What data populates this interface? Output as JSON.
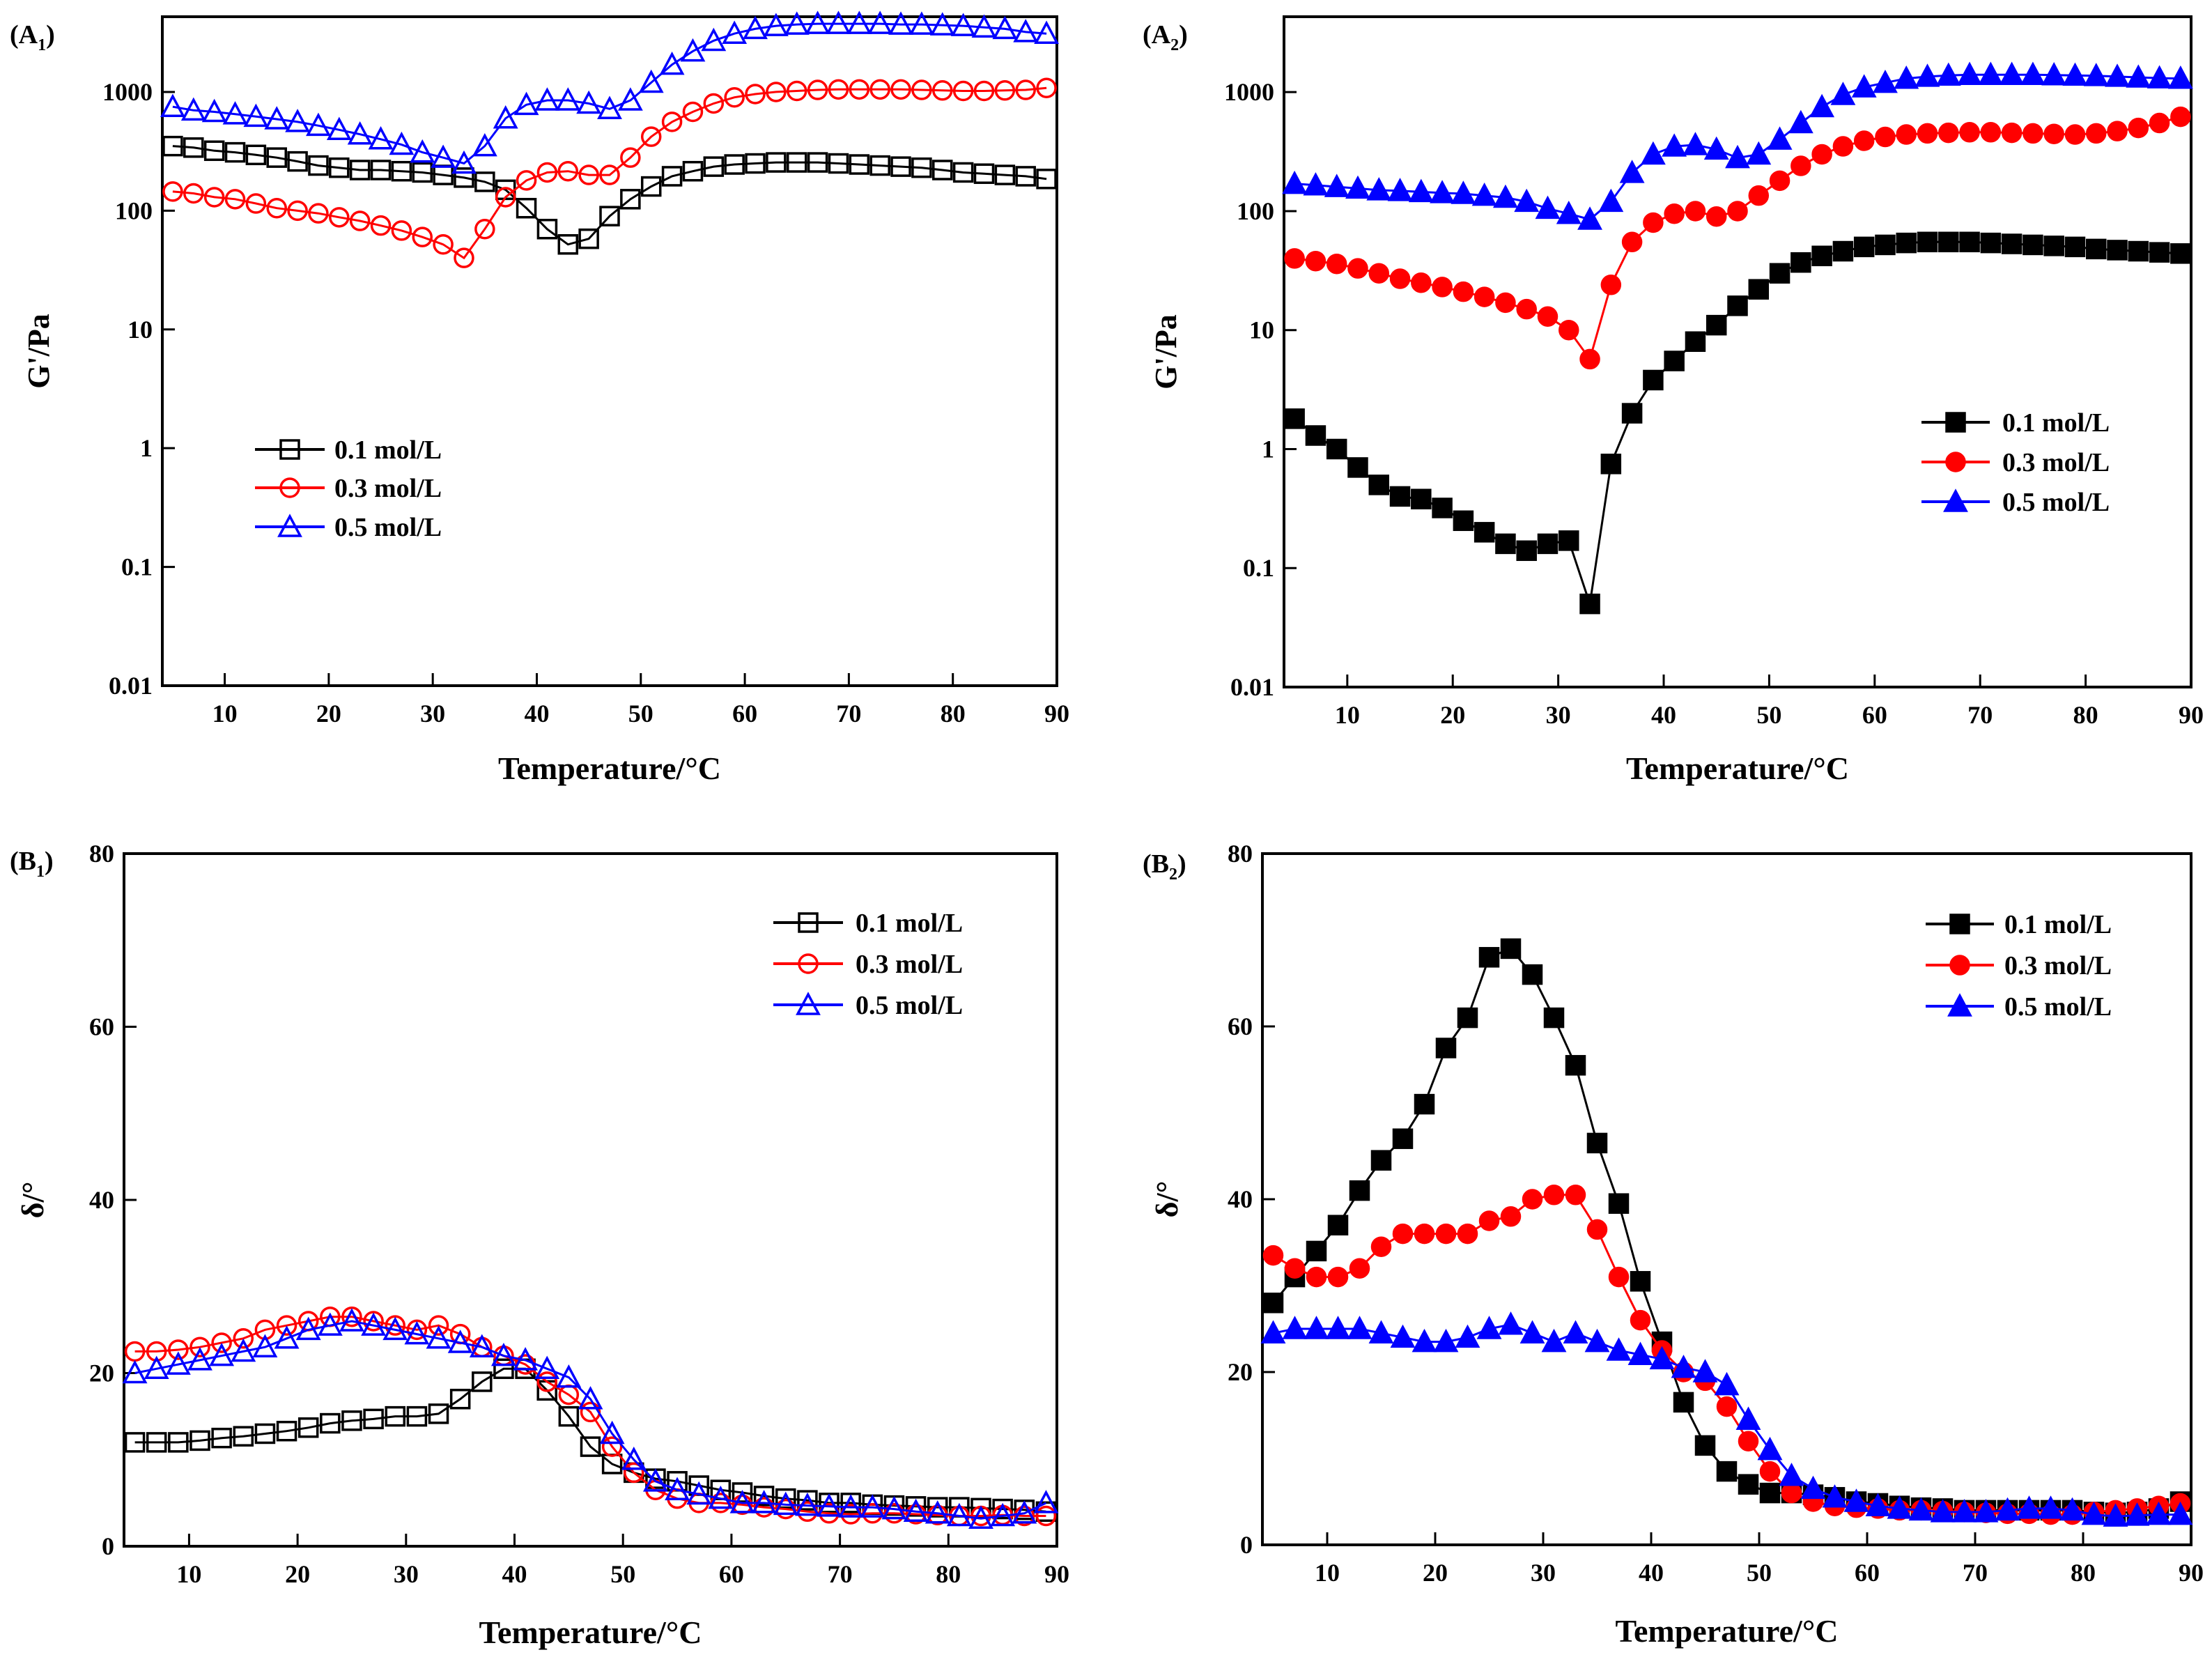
{
  "chart_data": [
    {
      "panel": {
        "main": "A",
        "sub": "1"
      },
      "type": "line",
      "marker_fill": "hollow",
      "legend": "middle-left",
      "xlabel": "Temperature/°C",
      "ylabel": "G'/Pa",
      "yscale": "log",
      "xlim": [
        4,
        90
      ],
      "ylim": [
        0.01,
        4300
      ],
      "xticks": [
        10,
        20,
        30,
        40,
        50,
        60,
        70,
        80,
        90
      ],
      "yticks": [
        0.01,
        0.1,
        1,
        10,
        100,
        1000
      ],
      "ytick_labels": [
        "0.01",
        "0.1",
        "1",
        "10",
        "100",
        "1000"
      ],
      "x": [
        5,
        7,
        9,
        11,
        13,
        15,
        17,
        19,
        21,
        23,
        25,
        27,
        29,
        31,
        33,
        35,
        37,
        39,
        41,
        43,
        45,
        47,
        49,
        51,
        53,
        55,
        57,
        59,
        61,
        63,
        65,
        67,
        69,
        71,
        73,
        75,
        77,
        79,
        81,
        83,
        85,
        87,
        89
      ],
      "series": [
        {
          "name": "0.1 mol/L",
          "color": "#000000",
          "marker": "square",
          "values": [
            350,
            340,
            320,
            310,
            295,
            280,
            260,
            240,
            230,
            220,
            220,
            215,
            210,
            200,
            190,
            175,
            150,
            105,
            70,
            52,
            58,
            90,
            125,
            160,
            195,
            215,
            235,
            245,
            250,
            255,
            255,
            255,
            250,
            245,
            240,
            235,
            230,
            220,
            210,
            205,
            200,
            195,
            185
          ]
        },
        {
          "name": "0.3 mol/L",
          "color": "#ff0000",
          "marker": "circle",
          "values": [
            145,
            140,
            130,
            125,
            115,
            105,
            100,
            95,
            88,
            82,
            75,
            68,
            60,
            52,
            40,
            70,
            130,
            180,
            210,
            215,
            200,
            200,
            280,
            420,
            560,
            680,
            800,
            900,
            960,
            1000,
            1020,
            1040,
            1050,
            1050,
            1050,
            1050,
            1040,
            1030,
            1020,
            1020,
            1030,
            1040,
            1080
          ]
        },
        {
          "name": "0.5 mol/L",
          "color": "#0000ff",
          "marker": "triangle",
          "values": [
            750,
            700,
            680,
            650,
            620,
            590,
            560,
            520,
            480,
            440,
            400,
            360,
            310,
            280,
            250,
            350,
            600,
            780,
            850,
            850,
            800,
            720,
            850,
            1200,
            1700,
            2200,
            2700,
            3100,
            3400,
            3600,
            3700,
            3750,
            3750,
            3750,
            3750,
            3700,
            3700,
            3650,
            3600,
            3500,
            3400,
            3200,
            3100
          ]
        }
      ]
    },
    {
      "panel": {
        "main": "A",
        "sub": "2"
      },
      "type": "line",
      "marker_fill": "filled",
      "legend": "middle-right",
      "xlabel": "Temperature/°C",
      "ylabel": "G'/Pa",
      "yscale": "log",
      "xlim": [
        4,
        90
      ],
      "ylim": [
        0.01,
        4300
      ],
      "xticks": [
        10,
        20,
        30,
        40,
        50,
        60,
        70,
        80,
        90
      ],
      "yticks": [
        0.01,
        0.1,
        1,
        10,
        100,
        1000
      ],
      "ytick_labels": [
        "0.01",
        "0.1",
        "1",
        "10",
        "100",
        "1000"
      ],
      "x": [
        5,
        7,
        9,
        11,
        13,
        15,
        17,
        19,
        21,
        23,
        25,
        27,
        29,
        31,
        33,
        35,
        37,
        39,
        41,
        43,
        45,
        47,
        49,
        51,
        53,
        55,
        57,
        59,
        61,
        63,
        65,
        67,
        69,
        71,
        73,
        75,
        77,
        79,
        81,
        83,
        85,
        87,
        89
      ],
      "series": [
        {
          "name": "0.1 mol/L",
          "color": "#000000",
          "marker": "square",
          "values": [
            1.8,
            1.3,
            1.0,
            0.7,
            0.5,
            0.4,
            0.38,
            0.32,
            0.25,
            0.2,
            0.16,
            0.14,
            0.16,
            0.17,
            0.05,
            0.75,
            2,
            3.8,
            5.5,
            8,
            11,
            16,
            22,
            30,
            37,
            42,
            46,
            50,
            52,
            54,
            55,
            55,
            55,
            54,
            53,
            52,
            51,
            50,
            48,
            47,
            46,
            45,
            44
          ]
        },
        {
          "name": "0.3 mol/L",
          "color": "#ff0000",
          "marker": "circle",
          "values": [
            40,
            38,
            36,
            33,
            30,
            27,
            25,
            23,
            21,
            19,
            17,
            15,
            13,
            10,
            5.7,
            24,
            55,
            80,
            95,
            100,
            90,
            100,
            135,
            180,
            240,
            300,
            350,
            390,
            420,
            440,
            450,
            455,
            460,
            460,
            455,
            450,
            445,
            440,
            450,
            470,
            500,
            550,
            620
          ]
        },
        {
          "name": "0.5 mol/L",
          "color": "#0000ff",
          "marker": "triangle",
          "values": [
            170,
            165,
            160,
            155,
            150,
            148,
            145,
            142,
            140,
            135,
            130,
            120,
            105,
            95,
            85,
            120,
            210,
            300,
            350,
            360,
            330,
            280,
            300,
            400,
            550,
            750,
            950,
            1100,
            1200,
            1300,
            1350,
            1380,
            1400,
            1400,
            1400,
            1400,
            1390,
            1380,
            1370,
            1350,
            1330,
            1310,
            1300
          ]
        }
      ]
    },
    {
      "panel": {
        "main": "B",
        "sub": "1"
      },
      "type": "line",
      "marker_fill": "hollow",
      "legend": "top-right",
      "xlabel": "Temperature/°C",
      "ylabel": "δ/°",
      "yscale": "linear",
      "xlim": [
        4,
        90
      ],
      "ylim": [
        0,
        80
      ],
      "xticks": [
        10,
        20,
        30,
        40,
        50,
        60,
        70,
        80,
        90
      ],
      "yticks": [
        0,
        20,
        40,
        60,
        80
      ],
      "ytick_labels": [
        "0",
        "20",
        "40",
        "60",
        "80"
      ],
      "x": [
        5,
        7,
        9,
        11,
        13,
        15,
        17,
        19,
        21,
        23,
        25,
        27,
        29,
        31,
        33,
        35,
        37,
        39,
        41,
        43,
        45,
        47,
        49,
        51,
        53,
        55,
        57,
        59,
        61,
        63,
        65,
        67,
        69,
        71,
        73,
        75,
        77,
        79,
        81,
        83,
        85,
        87,
        89
      ],
      "series": [
        {
          "name": "0.1 mol/L",
          "color": "#000000",
          "marker": "square",
          "values": [
            12,
            12,
            12,
            12.2,
            12.5,
            12.7,
            13,
            13.3,
            13.7,
            14.2,
            14.5,
            14.7,
            15,
            15,
            15.3,
            17,
            19,
            20.5,
            20.5,
            18,
            15,
            11.5,
            9.5,
            8.5,
            7.8,
            7.5,
            7,
            6.5,
            6.2,
            5.8,
            5.5,
            5.3,
            5,
            5,
            4.8,
            4.7,
            4.6,
            4.5,
            4.5,
            4.4,
            4.3,
            4.2,
            4
          ]
        },
        {
          "name": "0.3 mol/L",
          "color": "#ff0000",
          "marker": "circle",
          "values": [
            22.5,
            22.5,
            22.7,
            23,
            23.5,
            24,
            25,
            25.5,
            26,
            26.5,
            26.5,
            26,
            25.5,
            25,
            25.5,
            24.5,
            23,
            22,
            21,
            19,
            17.5,
            15.5,
            11.5,
            8.5,
            6.5,
            5.5,
            5,
            5,
            4.8,
            4.5,
            4.3,
            4,
            3.8,
            3.7,
            3.8,
            3.8,
            3.7,
            3.6,
            3.5,
            3.5,
            3.6,
            3.5,
            3.5
          ]
        },
        {
          "name": "0.5 mol/L",
          "color": "#0000ff",
          "marker": "triangle",
          "values": [
            20,
            20.5,
            21,
            21.5,
            22,
            22.5,
            23,
            24,
            25,
            25.5,
            26,
            25.5,
            25,
            24.5,
            24,
            23.5,
            23,
            22,
            21.5,
            20.5,
            19.5,
            17,
            13,
            10,
            7.5,
            6.5,
            6,
            5.5,
            5,
            5,
            4.8,
            4.7,
            4.6,
            4.5,
            4.5,
            4.3,
            4,
            3.8,
            3.5,
            3.2,
            3.5,
            3.8,
            5
          ]
        }
      ]
    },
    {
      "panel": {
        "main": "B",
        "sub": "2"
      },
      "type": "line",
      "marker_fill": "filled",
      "legend": "top-right",
      "xlabel": "Temperature/°C",
      "ylabel": "δ/°",
      "yscale": "linear",
      "xlim": [
        4,
        90
      ],
      "ylim": [
        0,
        80
      ],
      "xticks": [
        10,
        20,
        30,
        40,
        50,
        60,
        70,
        80,
        90
      ],
      "yticks": [
        0,
        20,
        40,
        60,
        80
      ],
      "ytick_labels": [
        "0",
        "20",
        "40",
        "60",
        "80"
      ],
      "x": [
        5,
        7,
        9,
        11,
        13,
        15,
        17,
        19,
        21,
        23,
        25,
        27,
        29,
        31,
        33,
        35,
        37,
        39,
        41,
        43,
        45,
        47,
        49,
        51,
        53,
        55,
        57,
        59,
        61,
        63,
        65,
        67,
        69,
        71,
        73,
        75,
        77,
        79,
        81,
        83,
        85,
        87,
        89
      ],
      "series": [
        {
          "name": "0.1 mol/L",
          "color": "#000000",
          "marker": "square",
          "values": [
            28,
            31,
            34,
            37,
            41,
            44.5,
            47,
            51,
            57.5,
            61,
            68,
            69,
            66,
            61,
            55.5,
            46.5,
            39.5,
            30.5,
            23.5,
            16.5,
            11.5,
            8.5,
            7,
            6,
            6,
            5.8,
            5.5,
            5,
            4.8,
            4.5,
            4.3,
            4.2,
            4,
            4,
            4,
            4,
            4,
            4,
            3.8,
            3.7,
            3.8,
            4.2,
            5
          ]
        },
        {
          "name": "0.3 mol/L",
          "color": "#ff0000",
          "marker": "circle",
          "values": [
            33.5,
            32,
            31,
            31,
            32,
            34.5,
            36,
            36,
            36,
            36,
            37.5,
            38,
            40,
            40.5,
            40.5,
            36.5,
            31,
            26,
            22.5,
            20,
            19,
            16,
            12,
            8.5,
            6,
            5,
            4.5,
            4.3,
            4.2,
            4,
            4,
            3.9,
            3.8,
            3.7,
            3.6,
            3.6,
            3.5,
            3.5,
            3.8,
            4,
            4.2,
            4.5,
            4.8
          ]
        },
        {
          "name": "0.5 mol/L",
          "color": "#0000ff",
          "marker": "triangle",
          "values": [
            24.5,
            25,
            25,
            25,
            25,
            24.5,
            24,
            23.5,
            23.5,
            24,
            25,
            25.5,
            24.5,
            23.5,
            24.5,
            23.5,
            22.5,
            22,
            21.5,
            20.5,
            20,
            18.5,
            14.5,
            11,
            8,
            6.5,
            5.5,
            5,
            4.5,
            4.2,
            4,
            3.8,
            3.8,
            3.8,
            4,
            4.2,
            4.2,
            4,
            3.5,
            3.3,
            3.4,
            3.5,
            3.5
          ]
        }
      ]
    }
  ]
}
